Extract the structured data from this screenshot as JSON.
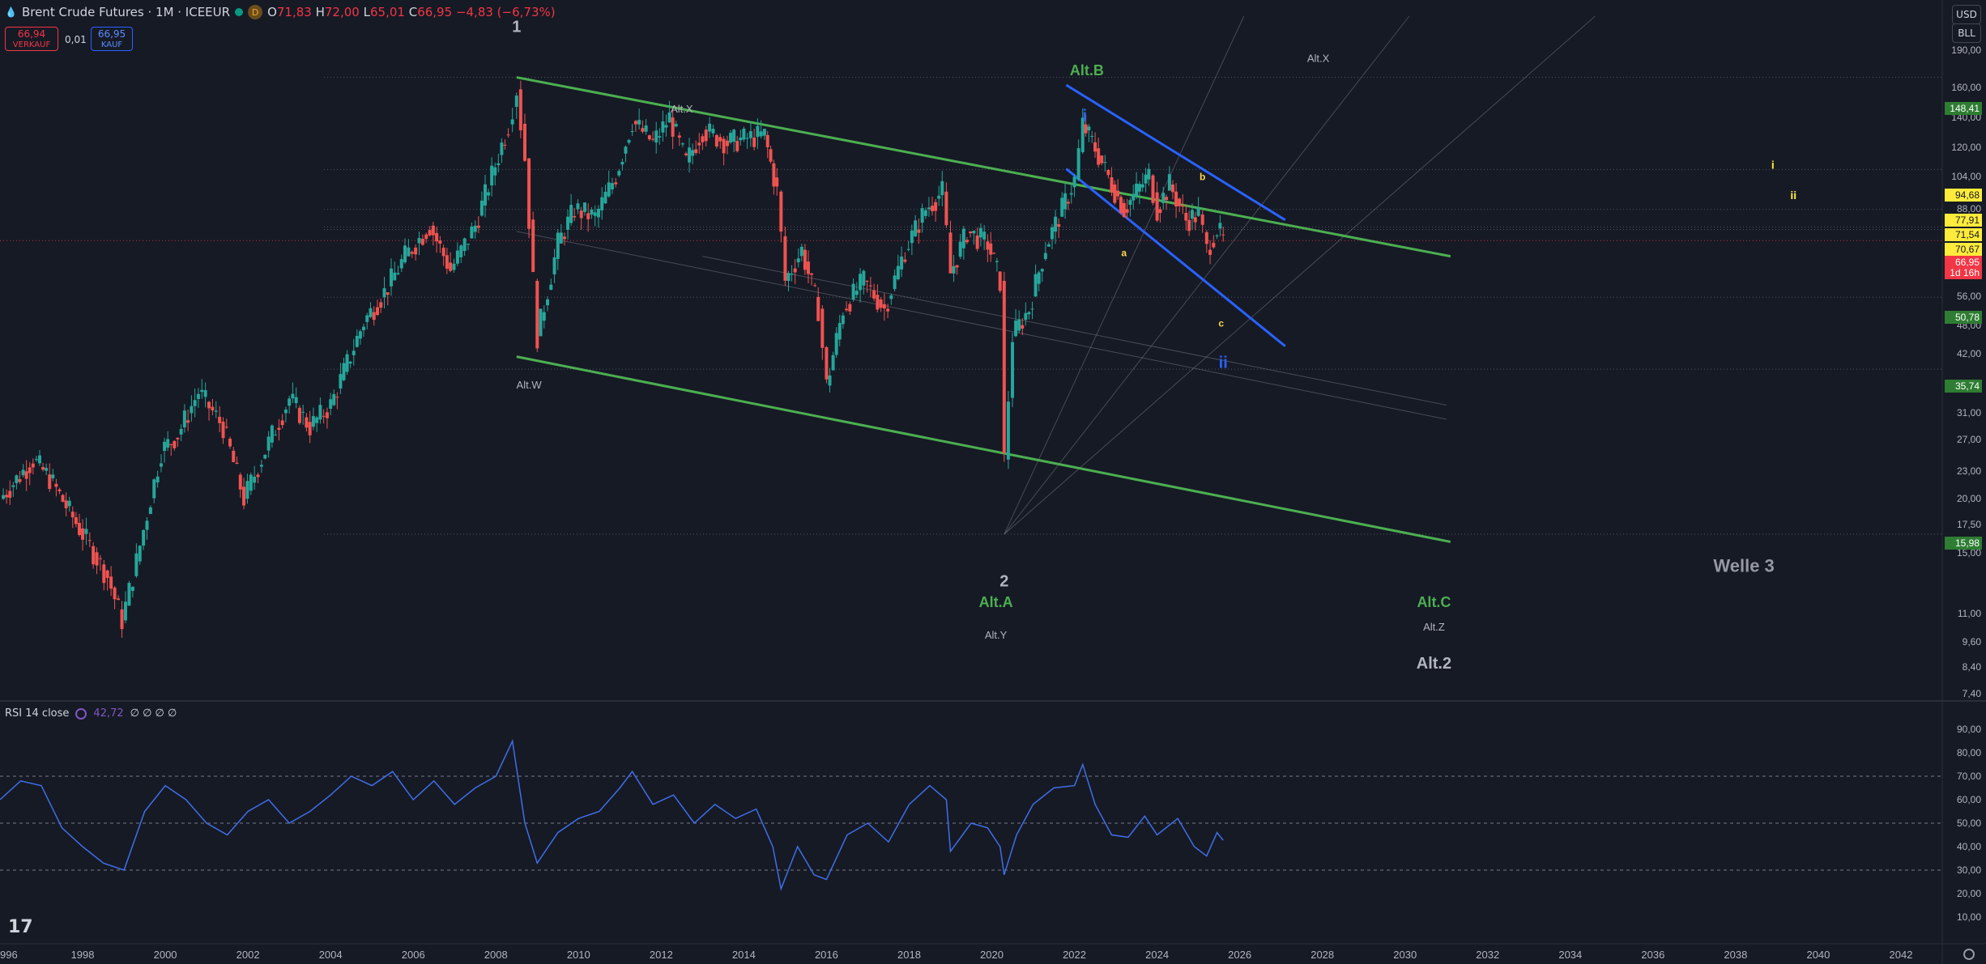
{
  "header": {
    "symbol_title": "Brent Crude Futures · 1M · ICEEUR",
    "interval_badge": "D",
    "ohlc": {
      "o_label": "O",
      "o": "71,83",
      "h_label": "H",
      "h": "72,00",
      "l_label": "L",
      "l": "65,01",
      "c_label": "C",
      "c": "66,95",
      "change": "−4,83 (−6,73%)"
    },
    "sell_price": "66,94",
    "sell_label": "VERKAUF",
    "spread": "0,01",
    "buy_price": "66,95",
    "buy_label": "KAUF"
  },
  "axis_controls": {
    "currency": "USD",
    "unit": "BLL"
  },
  "price_axis": {
    "scale": "log",
    "ticks": [
      "190,00",
      "160,00",
      "140,00",
      "120,00",
      "104,00",
      "88,00",
      "70,67",
      "56,00",
      "48,00",
      "42,00",
      "31,00",
      "27,00",
      "23,00",
      "20,00",
      "17,50",
      "15,00",
      "11,00",
      "9,60",
      "8,40",
      "7,40"
    ],
    "tags": [
      {
        "value": "148,41",
        "color": "#2e7d32"
      },
      {
        "value": "94,68",
        "color": "#ffeb3b"
      },
      {
        "value": "77,91",
        "color": "#ffeb3b"
      },
      {
        "value": "71,54",
        "color": "#ffeb3b"
      },
      {
        "value": "70,67",
        "color": "#ffeb3b"
      },
      {
        "value": "66,95",
        "color": "#f23645"
      },
      {
        "value": "1d 16h",
        "color": "#f23645"
      },
      {
        "value": "50,78",
        "color": "#2e7d32"
      },
      {
        "value": "35,74",
        "color": "#2e7d32"
      },
      {
        "value": "15,98",
        "color": "#2e7d32"
      }
    ]
  },
  "time_axis": {
    "labels": [
      "996",
      "1998",
      "2000",
      "2002",
      "2004",
      "2006",
      "2008",
      "2010",
      "2012",
      "2014",
      "2016",
      "2018",
      "2020",
      "2022",
      "2024",
      "2026",
      "2028",
      "2030",
      "2032",
      "2034",
      "2036",
      "2038",
      "2040",
      "2042"
    ]
  },
  "annotations": {
    "w1": "1",
    "w2": "2",
    "alt_b": "Alt.B",
    "wi": "i",
    "alt_x_top": "Alt.X",
    "alt_x_mid": "Alt.X",
    "alt_w": "Alt.W",
    "alt_a": "Alt.A",
    "alt_y": "Alt.Y",
    "alt_c": "Alt.C",
    "alt_z": "Alt.Z",
    "alt_2": "Alt.2",
    "a": "a",
    "b": "b",
    "c": "c",
    "wii": "ii",
    "far_i": "i",
    "far_ii": "ii",
    "welle3": "Welle 3"
  },
  "rsi": {
    "title": "RSI 14 close",
    "value": "42,72",
    "extra": "∅ ∅ ∅ ∅",
    "ticks": [
      "90,00",
      "80,00",
      "70,00",
      "60,00",
      "50,00",
      "40,00",
      "30,00",
      "20,00",
      "10,00"
    ]
  },
  "colors": {
    "background": "#161a25",
    "up": "#26a69a",
    "down": "#ef5350",
    "channel_green": "#4caf50",
    "channel_blue": "#2962ff",
    "rsi_line": "#3f6ee8"
  },
  "chart_data": {
    "type": "candlestick",
    "title": "Brent Crude Futures · 1M · ICEEUR",
    "x_range": [
      1996,
      2043
    ],
    "y_range": [
      7.2,
      200
    ],
    "y_scale": "log",
    "series": [
      {
        "name": "Brent Crude Futures",
        "points": [
          [
            1996.0,
            19
          ],
          [
            1996.8,
            23
          ],
          [
            1997.2,
            21
          ],
          [
            1998.0,
            16
          ],
          [
            1998.6,
            13
          ],
          [
            1998.95,
            10.5
          ],
          [
            1999.3,
            14
          ],
          [
            1999.9,
            24
          ],
          [
            2000.3,
            26
          ],
          [
            2000.8,
            32
          ],
          [
            2001.4,
            27
          ],
          [
            2001.9,
            19
          ],
          [
            2002.5,
            25
          ],
          [
            2003.0,
            31
          ],
          [
            2003.5,
            27
          ],
          [
            2004.0,
            30
          ],
          [
            2004.8,
            45
          ],
          [
            2005.3,
            52
          ],
          [
            2005.8,
            62
          ],
          [
            2006.4,
            72
          ],
          [
            2006.9,
            58
          ],
          [
            2007.5,
            72
          ],
          [
            2007.9,
            92
          ],
          [
            2008.3,
            118
          ],
          [
            2008.5,
            140
          ],
          [
            2008.7,
            100
          ],
          [
            2008.9,
            55
          ],
          [
            2009.0,
            42
          ],
          [
            2009.5,
            66
          ],
          [
            2009.9,
            78
          ],
          [
            2010.4,
            75
          ],
          [
            2010.9,
            92
          ],
          [
            2011.3,
            120
          ],
          [
            2011.8,
            108
          ],
          [
            2012.2,
            122
          ],
          [
            2012.6,
            98
          ],
          [
            2013.0,
            115
          ],
          [
            2013.6,
            108
          ],
          [
            2014.0,
            110
          ],
          [
            2014.5,
            112
          ],
          [
            2014.8,
            85
          ],
          [
            2015.0,
            55
          ],
          [
            2015.4,
            64
          ],
          [
            2015.8,
            48
          ],
          [
            2016.0,
            33
          ],
          [
            2016.4,
            48
          ],
          [
            2016.9,
            55
          ],
          [
            2017.4,
            48
          ],
          [
            2017.9,
            64
          ],
          [
            2018.4,
            78
          ],
          [
            2018.8,
            85
          ],
          [
            2019.0,
            57
          ],
          [
            2019.4,
            70
          ],
          [
            2019.9,
            66
          ],
          [
            2020.2,
            55
          ],
          [
            2020.3,
            23
          ],
          [
            2020.5,
            42
          ],
          [
            2020.9,
            48
          ],
          [
            2021.3,
            65
          ],
          [
            2021.7,
            78
          ],
          [
            2022.0,
            90
          ],
          [
            2022.2,
            118
          ],
          [
            2022.5,
            105
          ],
          [
            2022.9,
            88
          ],
          [
            2023.2,
            78
          ],
          [
            2023.5,
            85
          ],
          [
            2023.8,
            92
          ],
          [
            2024.0,
            78
          ],
          [
            2024.3,
            88
          ],
          [
            2024.7,
            74
          ],
          [
            2025.0,
            76
          ],
          [
            2025.2,
            64
          ],
          [
            2025.45,
            71
          ],
          [
            2025.6,
            66.95
          ]
        ]
      },
      {
        "name": "RSI 14 close",
        "points": [
          [
            1996.0,
            60
          ],
          [
            1996.5,
            68
          ],
          [
            1997.0,
            66
          ],
          [
            1997.5,
            48
          ],
          [
            1998.0,
            40
          ],
          [
            1998.5,
            33
          ],
          [
            1999.0,
            30
          ],
          [
            1999.5,
            55
          ],
          [
            2000.0,
            66
          ],
          [
            2000.5,
            60
          ],
          [
            2001.0,
            50
          ],
          [
            2001.5,
            45
          ],
          [
            2002.0,
            55
          ],
          [
            2002.5,
            60
          ],
          [
            2003.0,
            50
          ],
          [
            2003.5,
            55
          ],
          [
            2004.0,
            62
          ],
          [
            2004.5,
            70
          ],
          [
            2005.0,
            66
          ],
          [
            2005.5,
            72
          ],
          [
            2006.0,
            60
          ],
          [
            2006.5,
            68
          ],
          [
            2007.0,
            58
          ],
          [
            2007.5,
            65
          ],
          [
            2008.0,
            70
          ],
          [
            2008.4,
            85
          ],
          [
            2008.7,
            50
          ],
          [
            2009.0,
            33
          ],
          [
            2009.5,
            46
          ],
          [
            2010.0,
            52
          ],
          [
            2010.5,
            55
          ],
          [
            2011.0,
            65
          ],
          [
            2011.3,
            72
          ],
          [
            2011.8,
            58
          ],
          [
            2012.3,
            62
          ],
          [
            2012.8,
            50
          ],
          [
            2013.3,
            58
          ],
          [
            2013.8,
            52
          ],
          [
            2014.3,
            56
          ],
          [
            2014.7,
            40
          ],
          [
            2014.9,
            22
          ],
          [
            2015.3,
            40
          ],
          [
            2015.7,
            28
          ],
          [
            2016.0,
            26
          ],
          [
            2016.5,
            45
          ],
          [
            2017.0,
            50
          ],
          [
            2017.5,
            42
          ],
          [
            2018.0,
            58
          ],
          [
            2018.5,
            66
          ],
          [
            2018.9,
            60
          ],
          [
            2019.0,
            38
          ],
          [
            2019.5,
            50
          ],
          [
            2019.9,
            48
          ],
          [
            2020.2,
            40
          ],
          [
            2020.3,
            28
          ],
          [
            2020.6,
            45
          ],
          [
            2021.0,
            58
          ],
          [
            2021.5,
            65
          ],
          [
            2022.0,
            66
          ],
          [
            2022.2,
            75
          ],
          [
            2022.5,
            58
          ],
          [
            2022.9,
            45
          ],
          [
            2023.3,
            44
          ],
          [
            2023.7,
            53
          ],
          [
            2024.0,
            45
          ],
          [
            2024.5,
            52
          ],
          [
            2024.9,
            40
          ],
          [
            2025.2,
            36
          ],
          [
            2025.45,
            46
          ],
          [
            2025.6,
            42.72
          ]
        ]
      }
    ],
    "levels": [
      148.41,
      94.68,
      77.91,
      71.54,
      70.67,
      66.95,
      50.78,
      35.74,
      15.98
    ],
    "rsi_guides": [
      70,
      50,
      30
    ]
  }
}
